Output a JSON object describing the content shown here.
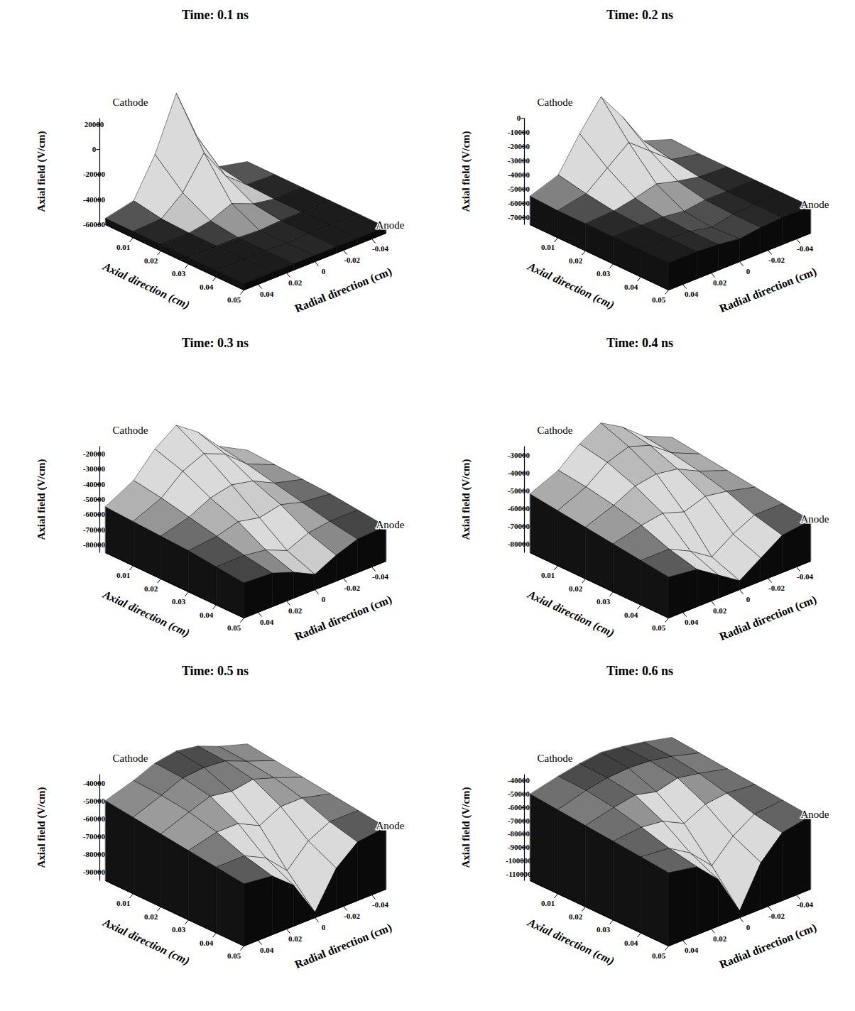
{
  "chart_data": [
    {
      "type": "surface",
      "title": "Time: 0.1 ns",
      "x_label": "Axial direction (cm)",
      "y_label": "Radial direction (cm)",
      "z_label": "Axial field (V/cm)",
      "annotations": [
        "Cathode",
        "Anode"
      ],
      "x": [
        0,
        0.01,
        0.02,
        0.03,
        0.04,
        0.05
      ],
      "y": [
        -0.05,
        -0.03,
        -0.015,
        0,
        0.015,
        0.03,
        0.05
      ],
      "z": [
        [
          -55000,
          -50000,
          -20000,
          22000,
          -20000,
          -50000,
          -55000
        ],
        [
          -55000,
          -54000,
          -40000,
          -15000,
          -40000,
          -54000,
          -55000
        ],
        [
          -55000,
          -55000,
          -52000,
          -45000,
          -52000,
          -55000,
          -55000
        ],
        [
          -55000,
          -55000,
          -55000,
          -56000,
          -55000,
          -55000,
          -55000
        ],
        [
          -55000,
          -55000,
          -55000,
          -56000,
          -55000,
          -55000,
          -55000
        ],
        [
          -55000,
          -55000,
          -55000,
          -55000,
          -55000,
          -55000,
          -55000
        ]
      ],
      "xlim": [
        0,
        0.05
      ],
      "ylim": [
        -0.05,
        0.05
      ],
      "zlim": [
        -60000,
        25000
      ],
      "xticks": [
        0.01,
        0.02,
        0.03,
        0.04,
        0.05
      ],
      "yticks": [
        0.04,
        0.02,
        0,
        -0.02,
        -0.04
      ],
      "zticks": [
        20000,
        0,
        -20000,
        -40000,
        -60000
      ]
    },
    {
      "type": "surface",
      "title": "Time: 0.2 ns",
      "x_label": "Axial direction (cm)",
      "y_label": "Radial direction (cm)",
      "z_label": "Axial field (V/cm)",
      "annotations": [
        "Cathode",
        "Anode"
      ],
      "x": [
        0,
        0.01,
        0.02,
        0.03,
        0.04,
        0.05
      ],
      "y": [
        -0.05,
        -0.03,
        -0.015,
        0,
        0.015,
        0.03,
        0.05
      ],
      "z": [
        [
          -55000,
          -48000,
          -25000,
          -5000,
          -25000,
          -48000,
          -55000
        ],
        [
          -56000,
          -52000,
          -40000,
          -28000,
          -40000,
          -52000,
          -56000
        ],
        [
          -56000,
          -55000,
          -52000,
          -48000,
          -52000,
          -55000,
          -56000
        ],
        [
          -56000,
          -56000,
          -56000,
          -58000,
          -56000,
          -56000,
          -56000
        ],
        [
          -56000,
          -56000,
          -57000,
          -60000,
          -57000,
          -56000,
          -56000
        ],
        [
          -56000,
          -56000,
          -57000,
          -59000,
          -57000,
          -56000,
          -56000
        ]
      ],
      "xlim": [
        0,
        0.05
      ],
      "ylim": [
        -0.05,
        0.05
      ],
      "zlim": [
        -75000,
        0
      ],
      "xticks": [
        0.01,
        0.02,
        0.03,
        0.04,
        0.05
      ],
      "yticks": [
        0.04,
        0.02,
        0,
        -0.02,
        -0.04
      ],
      "zticks": [
        0,
        -10000,
        -20000,
        -30000,
        -40000,
        -50000,
        -60000,
        -70000
      ]
    },
    {
      "type": "surface",
      "title": "Time: 0.3 ns",
      "x_label": "Axial direction (cm)",
      "y_label": "Radial direction (cm)",
      "z_label": "Axial field (V/cm)",
      "annotations": [
        "Cathode",
        "Anode"
      ],
      "x": [
        0,
        0.01,
        0.02,
        0.03,
        0.04,
        0.05
      ],
      "y": [
        -0.05,
        -0.03,
        -0.015,
        0,
        0.015,
        0.03,
        0.05
      ],
      "z": [
        [
          -55000,
          -45000,
          -30000,
          -20000,
          -30000,
          -45000,
          -55000
        ],
        [
          -56000,
          -48000,
          -36000,
          -30000,
          -36000,
          -48000,
          -56000
        ],
        [
          -57000,
          -52000,
          -45000,
          -42000,
          -45000,
          -52000,
          -57000
        ],
        [
          -58000,
          -56000,
          -52000,
          -55000,
          -52000,
          -56000,
          -58000
        ],
        [
          -60000,
          -60000,
          -62000,
          -68000,
          -62000,
          -60000,
          -60000
        ],
        [
          -62000,
          -63000,
          -68000,
          -75000,
          -68000,
          -63000,
          -62000
        ]
      ],
      "xlim": [
        0,
        0.05
      ],
      "ylim": [
        -0.05,
        0.05
      ],
      "zlim": [
        -85000,
        -15000
      ],
      "xticks": [
        0.01,
        0.02,
        0.03,
        0.04,
        0.05
      ],
      "yticks": [
        0.04,
        0.02,
        0,
        -0.02,
        -0.04
      ],
      "zticks": [
        -20000,
        -30000,
        -40000,
        -50000,
        -60000,
        -70000,
        -80000
      ]
    },
    {
      "type": "surface",
      "title": "Time: 0.4 ns",
      "x_label": "Axial direction (cm)",
      "y_label": "Radial direction (cm)",
      "z_label": "Axial field (V/cm)",
      "annotations": [
        "Cathode",
        "Anode"
      ],
      "x": [
        0,
        0.01,
        0.02,
        0.03,
        0.04,
        0.05
      ],
      "y": [
        -0.05,
        -0.03,
        -0.015,
        0,
        0.015,
        0.03,
        0.05
      ],
      "z": [
        [
          -52000,
          -45000,
          -35000,
          -28000,
          -35000,
          -45000,
          -52000
        ],
        [
          -54000,
          -47000,
          -38000,
          -34000,
          -38000,
          -47000,
          -54000
        ],
        [
          -56000,
          -50000,
          -44000,
          -42000,
          -44000,
          -50000,
          -56000
        ],
        [
          -58000,
          -54000,
          -52000,
          -56000,
          -52000,
          -54000,
          -58000
        ],
        [
          -60000,
          -60000,
          -66000,
          -74000,
          -66000,
          -60000,
          -60000
        ],
        [
          -62000,
          -64000,
          -72000,
          -80000,
          -72000,
          -64000,
          -62000
        ]
      ],
      "xlim": [
        0,
        0.05
      ],
      "ylim": [
        -0.05,
        0.05
      ],
      "zlim": [
        -85000,
        -25000
      ],
      "xticks": [
        0.01,
        0.02,
        0.03,
        0.04,
        0.05
      ],
      "yticks": [
        0.04,
        0.02,
        0,
        -0.02,
        -0.04
      ],
      "zticks": [
        -30000,
        -40000,
        -50000,
        -60000,
        -70000,
        -80000
      ]
    },
    {
      "type": "surface",
      "title": "Time: 0.5 ns",
      "x_label": "Axial direction (cm)",
      "y_label": "Radial direction (cm)",
      "z_label": "Axial field (V/cm)",
      "annotations": [
        "Cathode",
        "Anode"
      ],
      "x": [
        0,
        0.01,
        0.02,
        0.03,
        0.04,
        0.05
      ],
      "y": [
        -0.05,
        -0.03,
        -0.015,
        0,
        0.015,
        0.03,
        0.05
      ],
      "z": [
        [
          -50000,
          -45000,
          -40000,
          -38000,
          -40000,
          -45000,
          -50000
        ],
        [
          -52000,
          -46000,
          -41000,
          -40000,
          -41000,
          -46000,
          -52000
        ],
        [
          -54000,
          -48000,
          -44000,
          -46000,
          -44000,
          -48000,
          -54000
        ],
        [
          -56000,
          -52000,
          -52000,
          -58000,
          -52000,
          -52000,
          -56000
        ],
        [
          -58000,
          -58000,
          -64000,
          -76000,
          -64000,
          -58000,
          -58000
        ],
        [
          -60000,
          -62000,
          -72000,
          -92000,
          -72000,
          -62000,
          -60000
        ]
      ],
      "xlim": [
        0,
        0.05
      ],
      "ylim": [
        -0.05,
        0.05
      ],
      "zlim": [
        -95000,
        -35000
      ],
      "xticks": [
        0.01,
        0.02,
        0.03,
        0.04,
        0.05
      ],
      "yticks": [
        0.04,
        0.02,
        0,
        -0.02,
        -0.04
      ],
      "zticks": [
        -40000,
        -50000,
        -60000,
        -70000,
        -80000,
        -90000
      ]
    },
    {
      "type": "surface",
      "title": "Time: 0.6 ns",
      "x_label": "Axial direction (cm)",
      "y_label": "Radial direction (cm)",
      "z_label": "Axial field (V/cm)",
      "annotations": [
        "Cathode",
        "Anode"
      ],
      "x": [
        0,
        0.01,
        0.02,
        0.03,
        0.04,
        0.05
      ],
      "y": [
        -0.05,
        -0.03,
        -0.015,
        0,
        0.015,
        0.03,
        0.05
      ],
      "z": [
        [
          -50000,
          -45000,
          -42000,
          -40000,
          -42000,
          -45000,
          -50000
        ],
        [
          -52000,
          -46000,
          -43000,
          -42000,
          -43000,
          -46000,
          -52000
        ],
        [
          -54000,
          -49000,
          -46000,
          -50000,
          -46000,
          -49000,
          -54000
        ],
        [
          -56000,
          -54000,
          -56000,
          -64000,
          -56000,
          -54000,
          -56000
        ],
        [
          -58000,
          -60000,
          -70000,
          -86000,
          -70000,
          -60000,
          -58000
        ],
        [
          -60000,
          -64000,
          -80000,
          -110000,
          -80000,
          -64000,
          -60000
        ]
      ],
      "xlim": [
        0,
        0.05
      ],
      "ylim": [
        -0.05,
        0.05
      ],
      "zlim": [
        -115000,
        -35000
      ],
      "xticks": [
        0.01,
        0.02,
        0.03,
        0.04,
        0.05
      ],
      "yticks": [
        0.04,
        0.02,
        0,
        -0.02,
        -0.04
      ],
      "zticks": [
        -40000,
        -50000,
        -60000,
        -70000,
        -80000,
        -90000,
        -100000,
        -110000
      ]
    }
  ]
}
